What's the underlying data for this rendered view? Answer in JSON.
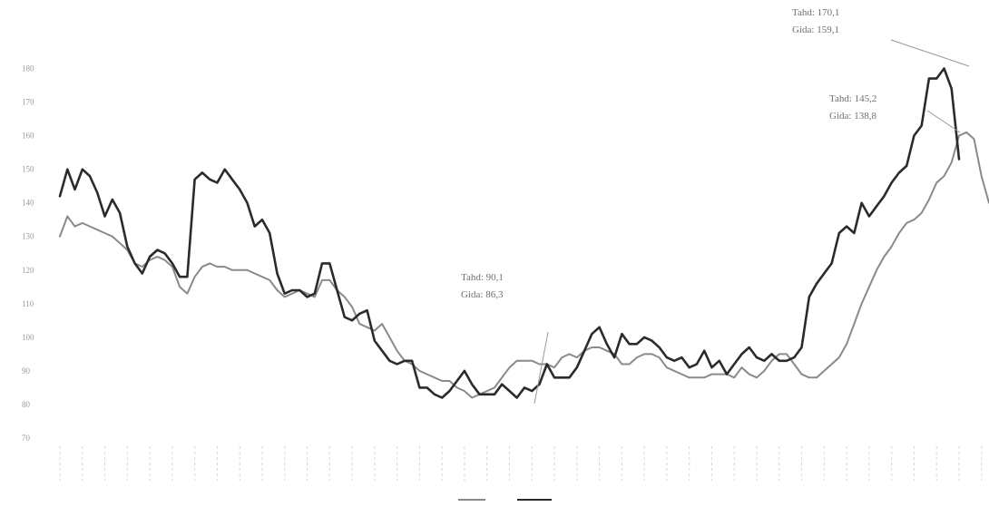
{
  "chart_data": {
    "type": "line",
    "title": "",
    "xlabel": "",
    "ylabel": "",
    "ylim": [
      70,
      185
    ],
    "y_ticks": [
      "70",
      "80",
      "90",
      "100",
      "110",
      "120",
      "130",
      "140",
      "150",
      "160",
      "170",
      "180"
    ],
    "grid": false,
    "legend_position": "bottom-center",
    "series": [
      {
        "name": "",
        "color": "#8a8a8a",
        "values": [
          130,
          136,
          133,
          134,
          133,
          132,
          131,
          130,
          128,
          126,
          122,
          121,
          123,
          124,
          123,
          121,
          115,
          113,
          118,
          121,
          122,
          121,
          121,
          120,
          120,
          120,
          119,
          118,
          117,
          114,
          112,
          113,
          114,
          113,
          112,
          117,
          117,
          114,
          112,
          109,
          104,
          103,
          102,
          104,
          100,
          96,
          93,
          92,
          90,
          89,
          88,
          87,
          87,
          85,
          84,
          82,
          83,
          84,
          85,
          88,
          91,
          93,
          93,
          93,
          92,
          92,
          91,
          94,
          95,
          94,
          96,
          97,
          97,
          96,
          95,
          92,
          92,
          94,
          95,
          95,
          94,
          91,
          90,
          89,
          88,
          88,
          88,
          89,
          89,
          89,
          88,
          91,
          89,
          88,
          90,
          93,
          95,
          95,
          92,
          89,
          88,
          88,
          90,
          92,
          94,
          98,
          104,
          110,
          115,
          120,
          124,
          127,
          131,
          134,
          135,
          137,
          141,
          146,
          148,
          152,
          160,
          161,
          159,
          148,
          140
        ]
      },
      {
        "name": "",
        "color": "#2b2b2b",
        "values": [
          142,
          150,
          144,
          150,
          148,
          143,
          136,
          141,
          137,
          127,
          122,
          119,
          124,
          126,
          125,
          122,
          118,
          118,
          147,
          149,
          147,
          146,
          150,
          147,
          144,
          140,
          133,
          135,
          131,
          119,
          113,
          114,
          114,
          112,
          113,
          122,
          122,
          114,
          106,
          105,
          107,
          108,
          99,
          96,
          93,
          92,
          93,
          93,
          85,
          85,
          83,
          82,
          84,
          87,
          90,
          86,
          83,
          83,
          83,
          86,
          84,
          82,
          85,
          84,
          86,
          92,
          88,
          88,
          88,
          91,
          96,
          101,
          103,
          98,
          94,
          101,
          98,
          98,
          100,
          99,
          97,
          94,
          93,
          94,
          91,
          92,
          96,
          91,
          93,
          89,
          92,
          95,
          97,
          94,
          93,
          95,
          93,
          93,
          94,
          97,
          112,
          116,
          119,
          122,
          131,
          133,
          131,
          140,
          136,
          139,
          142,
          146,
          149,
          151,
          160,
          163,
          177,
          177,
          180,
          174,
          153
        ]
      }
    ],
    "annotations": [
      {
        "line1": "Tahd: 170,1",
        "line2": "Gida: 159,1"
      },
      {
        "line1": "Tahd: 145,2",
        "line2": "Gida: 138,8"
      },
      {
        "line1": "Tahd: 90,1",
        "line2": "Gida: 86,3"
      }
    ]
  }
}
